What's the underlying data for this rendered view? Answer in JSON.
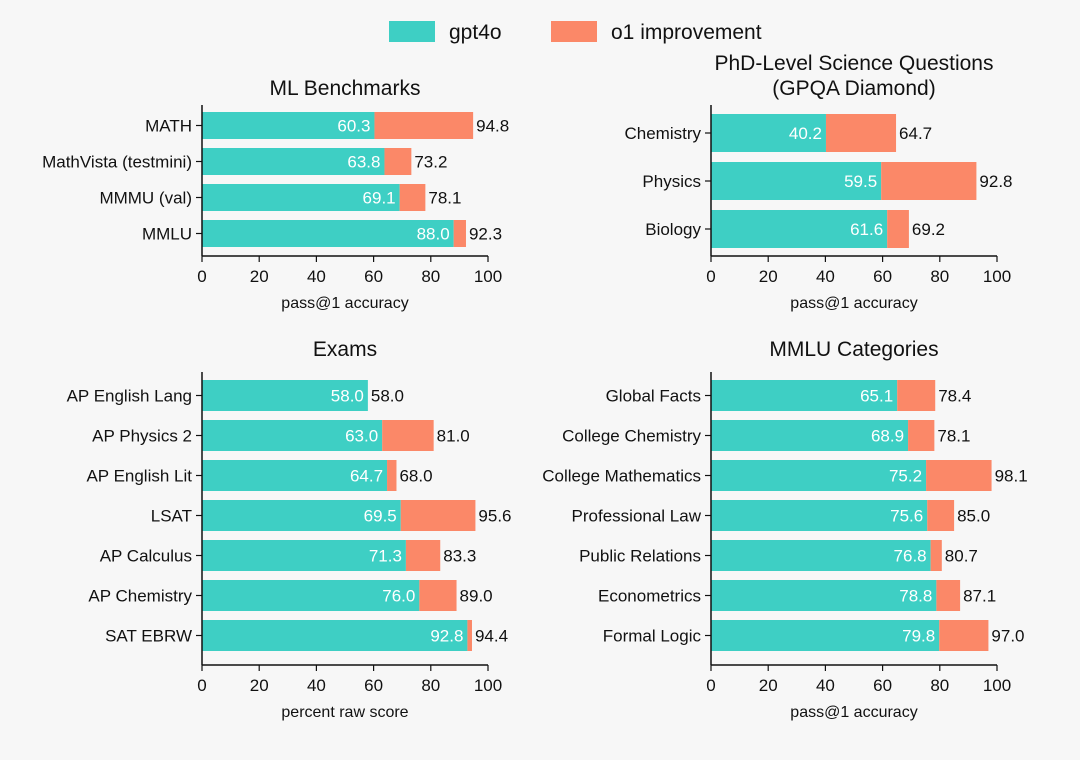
{
  "legend": {
    "items": [
      {
        "label": "gpt4o",
        "color": "#3ecfc4"
      },
      {
        "label": "o1 improvement",
        "color": "#fb8868"
      }
    ]
  },
  "chart_data": [
    {
      "type": "bar",
      "orientation": "horizontal",
      "stacked": true,
      "title": "ML Benchmarks",
      "xlabel": "pass@1 accuracy",
      "xlim": [
        0,
        100
      ],
      "xticks": [
        0,
        20,
        40,
        60,
        80,
        100
      ],
      "categories": [
        "MATH",
        "MathVista (testmini)",
        "MMMU (val)",
        "MMLU"
      ],
      "series": [
        {
          "name": "gpt4o",
          "values": [
            60.3,
            63.8,
            69.1,
            88.0
          ]
        },
        {
          "name": "o1 improvement",
          "values": [
            34.5,
            9.4,
            9.0,
            4.3
          ]
        }
      ],
      "base_labels": [
        "60.3",
        "63.8",
        "69.1",
        "88.0"
      ],
      "total_labels": [
        "94.8",
        "73.2",
        "78.1",
        "92.3"
      ]
    },
    {
      "type": "bar",
      "orientation": "horizontal",
      "stacked": true,
      "title": "PhD-Level Science Questions\n(GPQA Diamond)",
      "xlabel": "pass@1 accuracy",
      "xlim": [
        0,
        100
      ],
      "xticks": [
        0,
        20,
        40,
        60,
        80,
        100
      ],
      "categories": [
        "Chemistry",
        "Physics",
        "Biology"
      ],
      "series": [
        {
          "name": "gpt4o",
          "values": [
            40.2,
            59.5,
            61.6
          ]
        },
        {
          "name": "o1 improvement",
          "values": [
            24.5,
            33.3,
            7.6
          ]
        }
      ],
      "base_labels": [
        "40.2",
        "59.5",
        "61.6"
      ],
      "total_labels": [
        "64.7",
        "92.8",
        "69.2"
      ]
    },
    {
      "type": "bar",
      "orientation": "horizontal",
      "stacked": true,
      "title": "Exams",
      "xlabel": "percent raw score",
      "xlim": [
        0,
        100
      ],
      "xticks": [
        0,
        20,
        40,
        60,
        80,
        100
      ],
      "categories": [
        "AP English Lang",
        "AP Physics 2",
        "AP English Lit",
        "LSAT",
        "AP Calculus",
        "AP Chemistry",
        "SAT EBRW"
      ],
      "series": [
        {
          "name": "gpt4o",
          "values": [
            58.0,
            63.0,
            64.7,
            69.5,
            71.3,
            76.0,
            92.8
          ]
        },
        {
          "name": "o1 improvement",
          "values": [
            0.0,
            18.0,
            3.3,
            26.1,
            12.0,
            13.0,
            1.6
          ]
        }
      ],
      "base_labels": [
        "58.0",
        "63.0",
        "64.7",
        "69.5",
        "71.3",
        "76.0",
        "92.8"
      ],
      "total_labels": [
        "58.0",
        "81.0",
        "68.0",
        "95.6",
        "83.3",
        "89.0",
        "94.4"
      ]
    },
    {
      "type": "bar",
      "orientation": "horizontal",
      "stacked": true,
      "title": "MMLU Categories",
      "xlabel": "pass@1 accuracy",
      "xlim": [
        0,
        100
      ],
      "xticks": [
        0,
        20,
        40,
        60,
        80,
        100
      ],
      "categories": [
        "Global Facts",
        "College Chemistry",
        "College Mathematics",
        "Professional Law",
        "Public Relations",
        "Econometrics",
        "Formal Logic"
      ],
      "series": [
        {
          "name": "gpt4o",
          "values": [
            65.1,
            68.9,
            75.2,
            75.6,
            76.8,
            78.8,
            79.8
          ]
        },
        {
          "name": "o1 improvement",
          "values": [
            13.3,
            9.2,
            22.9,
            9.4,
            3.9,
            8.3,
            17.2
          ]
        }
      ],
      "base_labels": [
        "65.1",
        "68.9",
        "75.2",
        "75.6",
        "76.8",
        "78.8",
        "79.8"
      ],
      "total_labels": [
        "78.4",
        "78.1",
        "98.1",
        "85.0",
        "80.7",
        "87.1",
        "97.0"
      ]
    }
  ]
}
